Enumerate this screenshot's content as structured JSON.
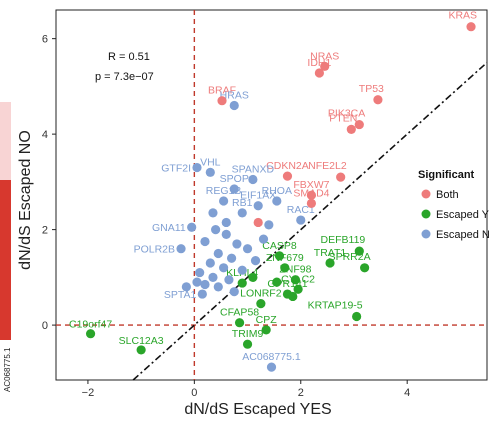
{
  "chart_data": {
    "type": "scatter",
    "xlabel": "dN/dS Escaped YES",
    "ylabel": "dN/dS Escaped NO",
    "xlim": [
      -2.6,
      5.5
    ],
    "ylim": [
      -1.15,
      6.6
    ],
    "xticks": [
      -2,
      0,
      2,
      4
    ],
    "yticks": [
      0,
      2,
      4,
      6
    ],
    "grid": false,
    "reference_lines": {
      "vline_x": 0,
      "hline_y": 0,
      "diagonal_slope": 1,
      "diagonal_intercept": 0
    },
    "annotations": {
      "r": "R = 0.51",
      "p": "p = 7.3e−07"
    },
    "legend": {
      "title": "Significant",
      "placement": "right",
      "entries": [
        {
          "name": "Both",
          "color": "#ee7b7b"
        },
        {
          "name": "Escaped Y",
          "color": "#2aa52a"
        },
        {
          "name": "Escaped N",
          "color": "#7f9fd3"
        }
      ]
    },
    "colors": {
      "Both": "#ee7b7b",
      "EscapedYES": "#2aa52a",
      "EscapedNO": "#7f9fd3"
    },
    "series": [
      {
        "name": "Both",
        "color": "#ee7b7b",
        "points": [
          {
            "x": 5.2,
            "y": 6.25,
            "label": "KRAS"
          },
          {
            "x": 2.45,
            "y": 5.42,
            "label": "NRAS"
          },
          {
            "x": 2.35,
            "y": 5.28,
            "label": "IDH1"
          },
          {
            "x": 0.52,
            "y": 4.7,
            "label": "BRAF"
          },
          {
            "x": 3.45,
            "y": 4.72,
            "label": "TP53"
          },
          {
            "x": 3.1,
            "y": 4.2,
            "label": "PIK3CA"
          },
          {
            "x": 2.95,
            "y": 4.1,
            "label": "PTEN"
          },
          {
            "x": 1.75,
            "y": 3.12,
            "label": "CDKN2A"
          },
          {
            "x": 2.75,
            "y": 3.1,
            "label": "NFE2L2"
          },
          {
            "x": 2.2,
            "y": 2.72,
            "label": "FBXW7"
          },
          {
            "x": 2.2,
            "y": 2.55,
            "label": "SMAD4"
          },
          {
            "x": 1.2,
            "y": 2.15,
            "label": ""
          }
        ]
      },
      {
        "name": "Escaped Y",
        "color": "#2aa52a",
        "points": [
          {
            "x": 3.1,
            "y": 1.55,
            "label": "DEFB119"
          },
          {
            "x": 3.2,
            "y": 1.2,
            "label": "SPRR2A"
          },
          {
            "x": 1.6,
            "y": 1.45,
            "label": "CASP8"
          },
          {
            "x": 1.7,
            "y": 1.2,
            "label": "ZNF679"
          },
          {
            "x": 2.55,
            "y": 1.3,
            "label": "TRAT1"
          },
          {
            "x": 1.9,
            "y": 0.95,
            "label": "ZNF98"
          },
          {
            "x": 0.9,
            "y": 0.88,
            "label": "KLHL4"
          },
          {
            "x": 1.95,
            "y": 0.75,
            "label": "CYLC2"
          },
          {
            "x": 1.75,
            "y": 0.65,
            "label": "GPR141"
          },
          {
            "x": 1.25,
            "y": 0.45,
            "label": "LONRF2"
          },
          {
            "x": 3.05,
            "y": 0.18,
            "label": "KRTAP19-5"
          },
          {
            "x": 0.85,
            "y": 0.05,
            "label": "CFAP58"
          },
          {
            "x": 1.35,
            "y": -0.1,
            "label": "CPZ"
          },
          {
            "x": -1.95,
            "y": -0.18,
            "label": "C19orf47"
          },
          {
            "x": -1.0,
            "y": -0.52,
            "label": "SLC12A3"
          },
          {
            "x": 1.0,
            "y": -0.4,
            "label": "TRIM9"
          },
          {
            "x": 1.55,
            "y": 0.9,
            "label": ""
          },
          {
            "x": 1.85,
            "y": 0.6,
            "label": ""
          },
          {
            "x": 1.1,
            "y": 1.0,
            "label": ""
          }
        ]
      },
      {
        "name": "Escaped N",
        "color": "#7f9fd3",
        "points": [
          {
            "x": 0.75,
            "y": 4.6,
            "label": "HRAS"
          },
          {
            "x": 0.05,
            "y": 3.3,
            "label": "GTF2I"
          },
          {
            "x": 0.3,
            "y": 3.2,
            "label": "VHL"
          },
          {
            "x": 1.1,
            "y": 3.05,
            "label": "SPANXD"
          },
          {
            "x": 0.75,
            "y": 2.85,
            "label": "SPOP"
          },
          {
            "x": 1.55,
            "y": 2.6,
            "label": "RHOA"
          },
          {
            "x": 0.9,
            "y": 2.35,
            "label": "RB1"
          },
          {
            "x": 0.55,
            "y": 2.6,
            "label": "REG1B"
          },
          {
            "x": 1.2,
            "y": 2.5,
            "label": "EIF1AX"
          },
          {
            "x": 2.0,
            "y": 2.2,
            "label": "RAC1"
          },
          {
            "x": -0.05,
            "y": 2.05,
            "label": "GNA11"
          },
          {
            "x": -0.25,
            "y": 1.6,
            "label": "POLR2B"
          },
          {
            "x": 0.15,
            "y": 0.65,
            "label": "SPTA1"
          },
          {
            "x": 1.45,
            "y": -0.88,
            "label": "AC068775.1"
          },
          {
            "x": 0.4,
            "y": 2.0,
            "label": ""
          },
          {
            "x": 0.6,
            "y": 1.9,
            "label": ""
          },
          {
            "x": 0.2,
            "y": 1.75,
            "label": ""
          },
          {
            "x": 0.8,
            "y": 1.7,
            "label": ""
          },
          {
            "x": 1.0,
            "y": 1.6,
            "label": ""
          },
          {
            "x": 0.45,
            "y": 1.5,
            "label": ""
          },
          {
            "x": 0.7,
            "y": 1.4,
            "label": ""
          },
          {
            "x": 1.15,
            "y": 1.35,
            "label": ""
          },
          {
            "x": 0.3,
            "y": 1.3,
            "label": ""
          },
          {
            "x": 0.55,
            "y": 1.2,
            "label": ""
          },
          {
            "x": 0.9,
            "y": 1.15,
            "label": ""
          },
          {
            "x": 0.1,
            "y": 1.1,
            "label": ""
          },
          {
            "x": 0.35,
            "y": 1.0,
            "label": ""
          },
          {
            "x": 0.65,
            "y": 0.95,
            "label": ""
          },
          {
            "x": 0.2,
            "y": 0.85,
            "label": ""
          },
          {
            "x": 0.45,
            "y": 0.8,
            "label": ""
          },
          {
            "x": 0.75,
            "y": 0.7,
            "label": ""
          },
          {
            "x": -0.15,
            "y": 0.8,
            "label": ""
          },
          {
            "x": 0.05,
            "y": 0.9,
            "label": ""
          },
          {
            "x": 1.3,
            "y": 1.8,
            "label": ""
          },
          {
            "x": 0.6,
            "y": 2.15,
            "label": ""
          },
          {
            "x": 0.35,
            "y": 2.35,
            "label": ""
          },
          {
            "x": 1.4,
            "y": 2.1,
            "label": ""
          }
        ]
      }
    ]
  },
  "side_panel": {
    "label": "AC068775.1",
    "colors": [
      "#f8d4d4",
      "#d7382e"
    ]
  }
}
